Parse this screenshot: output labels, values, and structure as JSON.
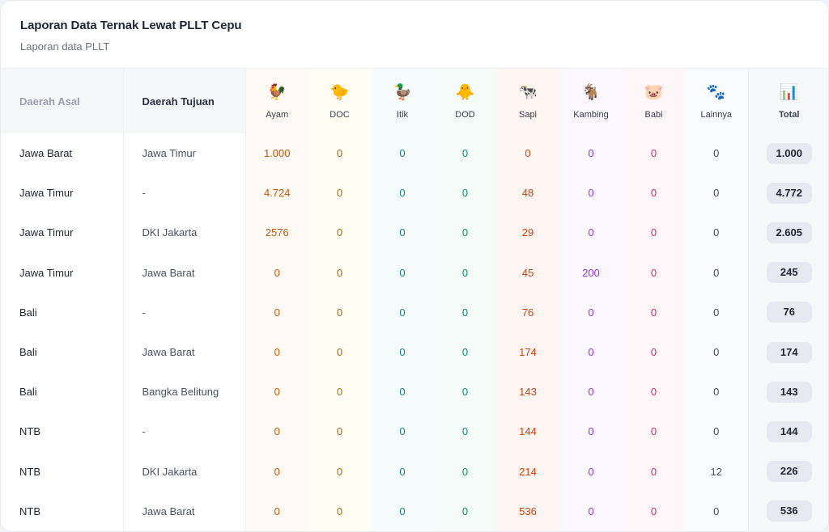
{
  "header": {
    "title": "Laporan Data Ternak Lewat PLLT Cepu",
    "subtitle": "Laporan data PLLT"
  },
  "columns": {
    "asal": "Daerah Asal",
    "tujuan": "Daerah Tujuan",
    "animals": [
      {
        "key": "ayam",
        "label": "Ayam",
        "icon": "rooster-icon",
        "glyph": "🐓"
      },
      {
        "key": "doc",
        "label": "DOC",
        "icon": "chick-icon",
        "glyph": "🐤"
      },
      {
        "key": "itik",
        "label": "Itik",
        "icon": "duck-icon",
        "glyph": "🦆"
      },
      {
        "key": "dod",
        "label": "DOD",
        "icon": "hatching-chick-icon",
        "glyph": "🐥"
      },
      {
        "key": "sapi",
        "label": "Sapi",
        "icon": "cow-icon",
        "glyph": "🐄"
      },
      {
        "key": "kambing",
        "label": "Kambing",
        "icon": "goat-icon",
        "glyph": "🐐"
      },
      {
        "key": "babi",
        "label": "Babi",
        "icon": "pig-icon",
        "glyph": "🐷"
      },
      {
        "key": "lain",
        "label": "Lainnya",
        "icon": "paw-prints-icon",
        "glyph": "🐾"
      }
    ],
    "total": {
      "label": "Total",
      "icon": "bar-chart-icon",
      "glyph": "📊"
    }
  },
  "rows": [
    {
      "asal": "Jawa Barat",
      "tujuan": "Jawa Timur",
      "ayam": "1.000",
      "doc": "0",
      "itik": "0",
      "dod": "0",
      "sapi": "0",
      "kambing": "0",
      "babi": "0",
      "lain": "0",
      "total": "1.000"
    },
    {
      "asal": "Jawa Timur",
      "tujuan": "-",
      "ayam": "4.724",
      "doc": "0",
      "itik": "0",
      "dod": "0",
      "sapi": "48",
      "kambing": "0",
      "babi": "0",
      "lain": "0",
      "total": "4.772"
    },
    {
      "asal": "Jawa Timur",
      "tujuan": "DKI Jakarta",
      "ayam": "2576",
      "doc": "0",
      "itik": "0",
      "dod": "0",
      "sapi": "29",
      "kambing": "0",
      "babi": "0",
      "lain": "0",
      "total": "2.605"
    },
    {
      "asal": "Jawa Timur",
      "tujuan": "Jawa Barat",
      "ayam": "0",
      "doc": "0",
      "itik": "0",
      "dod": "0",
      "sapi": "45",
      "kambing": "200",
      "babi": "0",
      "lain": "0",
      "total": "245"
    },
    {
      "asal": "Bali",
      "tujuan": "-",
      "ayam": "0",
      "doc": "0",
      "itik": "0",
      "dod": "0",
      "sapi": "76",
      "kambing": "0",
      "babi": "0",
      "lain": "0",
      "total": "76"
    },
    {
      "asal": "Bali",
      "tujuan": "Jawa Barat",
      "ayam": "0",
      "doc": "0",
      "itik": "0",
      "dod": "0",
      "sapi": "174",
      "kambing": "0",
      "babi": "0",
      "lain": "0",
      "total": "174"
    },
    {
      "asal": "Bali",
      "tujuan": "Bangka Belitung",
      "ayam": "0",
      "doc": "0",
      "itik": "0",
      "dod": "0",
      "sapi": "143",
      "kambing": "0",
      "babi": "0",
      "lain": "0",
      "total": "143"
    },
    {
      "asal": "NTB",
      "tujuan": "-",
      "ayam": "0",
      "doc": "0",
      "itik": "0",
      "dod": "0",
      "sapi": "144",
      "kambing": "0",
      "babi": "0",
      "lain": "0",
      "total": "144"
    },
    {
      "asal": "NTB",
      "tujuan": "DKI Jakarta",
      "ayam": "0",
      "doc": "0",
      "itik": "0",
      "dod": "0",
      "sapi": "214",
      "kambing": "0",
      "babi": "0",
      "lain": "12",
      "total": "226"
    },
    {
      "asal": "NTB",
      "tujuan": "Jawa Barat",
      "ayam": "0",
      "doc": "0",
      "itik": "0",
      "dod": "0",
      "sapi": "536",
      "kambing": "0",
      "babi": "0",
      "lain": "0",
      "total": "536"
    }
  ]
}
